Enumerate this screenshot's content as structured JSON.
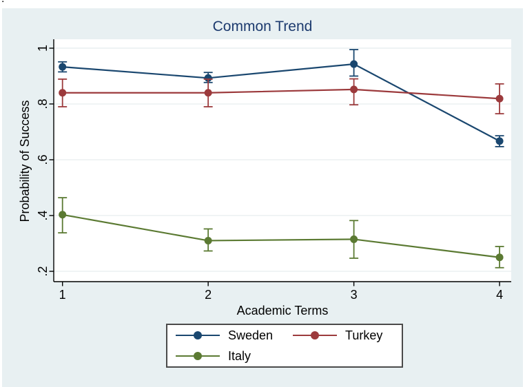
{
  "page": {
    "console_artifact": "."
  },
  "chart_data": {
    "type": "line",
    "title": "Common Trend",
    "xlabel": "Academic Terms",
    "ylabel": "Probability of Success",
    "x": [
      1,
      2,
      3,
      4
    ],
    "x_tick_labels": [
      "1",
      "2",
      "3",
      "4"
    ],
    "y_ticks": [
      1,
      0.8,
      0.6,
      0.4,
      0.2
    ],
    "y_tick_labels": [
      "1",
      ".8",
      ".6",
      ".4",
      ".2"
    ],
    "xlim": [
      0.94,
      4.08
    ],
    "ylim": [
      0.163,
      1.032
    ],
    "grid": "horizontal",
    "legend_position": "bottom",
    "error_bars": true,
    "colors": {
      "background": "#e8f0f2",
      "plot_background": "#ffffff",
      "gridline": "#e6edef",
      "axis": "#000000",
      "title": "#1c3a6e",
      "legend_border": "#4a4a4a"
    },
    "series": [
      {
        "name": "Sweden",
        "color": "#1a476f",
        "values": [
          0.933,
          0.893,
          0.943,
          0.667
        ],
        "ci_low": [
          0.915,
          0.877,
          0.9,
          0.647
        ],
        "ci_high": [
          0.951,
          0.913,
          0.995,
          0.686
        ]
      },
      {
        "name": "Turkey",
        "color": "#9c3a3c",
        "values": [
          0.84,
          0.84,
          0.852,
          0.819
        ],
        "ci_low": [
          0.79,
          0.79,
          0.797,
          0.765
        ],
        "ci_high": [
          0.889,
          0.889,
          0.89,
          0.872
        ]
      },
      {
        "name": "Italy",
        "color": "#5b7a32",
        "values": [
          0.403,
          0.31,
          0.315,
          0.25
        ],
        "ci_low": [
          0.338,
          0.273,
          0.247,
          0.213
        ],
        "ci_high": [
          0.464,
          0.352,
          0.382,
          0.289
        ]
      }
    ]
  }
}
